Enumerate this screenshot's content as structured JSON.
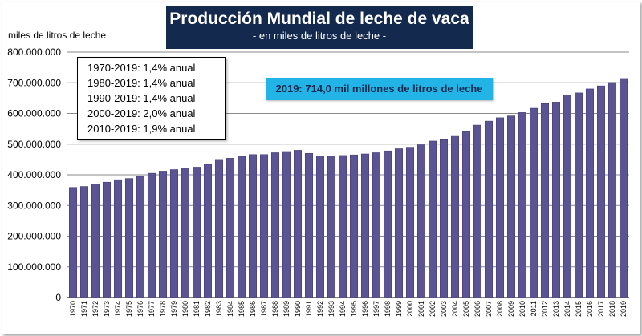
{
  "title": {
    "main": "Producción Mundial de leche de vaca",
    "sub": "- en miles de litros de leche -"
  },
  "axis_unit_label": "miles de litros de leche",
  "callout": "2019: 714,0 mil millones de litros de leche",
  "legend": [
    "1970-2019: 1,4% anual",
    "1980-2019: 1,4% anual",
    "1990-2019: 1,4% anual",
    "2000-2019: 2,0% anual",
    "2010-2019: 1,9% anual"
  ],
  "colors": {
    "bar": "#5b5493",
    "bar_edge": "#3e3870",
    "title_bg": "#14294e",
    "callout_bg": "#22b4e7",
    "grid": "#8a8a8a"
  },
  "chart_data": {
    "type": "bar",
    "title": "Producción Mundial de leche de vaca",
    "subtitle": "- en miles de litros de leche -",
    "ylabel": "miles de litros de leche",
    "xlabel": "",
    "ylim": [
      0,
      800000000
    ],
    "yticks": [
      0,
      100000000,
      200000000,
      300000000,
      400000000,
      500000000,
      600000000,
      700000000,
      800000000
    ],
    "ytick_labels": [
      "0",
      "100.000.000",
      "200.000.000",
      "300.000.000",
      "400.000.000",
      "500.000.000",
      "600.000.000",
      "700.000.000",
      "800.000.000"
    ],
    "grid": true,
    "categories": [
      "1970",
      "1971",
      "1972",
      "1973",
      "1974",
      "1975",
      "1976",
      "1977",
      "1978",
      "1979",
      "1980",
      "1981",
      "1982",
      "1983",
      "1984",
      "1985",
      "1986",
      "1987",
      "1988",
      "1989",
      "1990",
      "1991",
      "1992",
      "1993",
      "1994",
      "1995",
      "1996",
      "1997",
      "1998",
      "1999",
      "2000",
      "2001",
      "2002",
      "2003",
      "2004",
      "2005",
      "2006",
      "2007",
      "2008",
      "2009",
      "2010",
      "2011",
      "2012",
      "2013",
      "2014",
      "2015",
      "2016",
      "2017",
      "2018",
      "2019"
    ],
    "values": [
      359000000,
      362000000,
      370000000,
      376000000,
      384000000,
      388000000,
      395000000,
      405000000,
      412000000,
      417000000,
      422000000,
      425000000,
      434000000,
      450000000,
      454000000,
      460000000,
      466000000,
      466000000,
      472000000,
      476000000,
      480000000,
      470000000,
      462000000,
      462000000,
      463000000,
      465000000,
      468000000,
      472000000,
      478000000,
      485000000,
      490000000,
      498000000,
      510000000,
      517000000,
      528000000,
      543000000,
      562000000,
      575000000,
      586000000,
      592000000,
      603000000,
      617000000,
      632000000,
      637000000,
      660000000,
      667000000,
      680000000,
      690000000,
      701000000,
      714000000
    ]
  }
}
